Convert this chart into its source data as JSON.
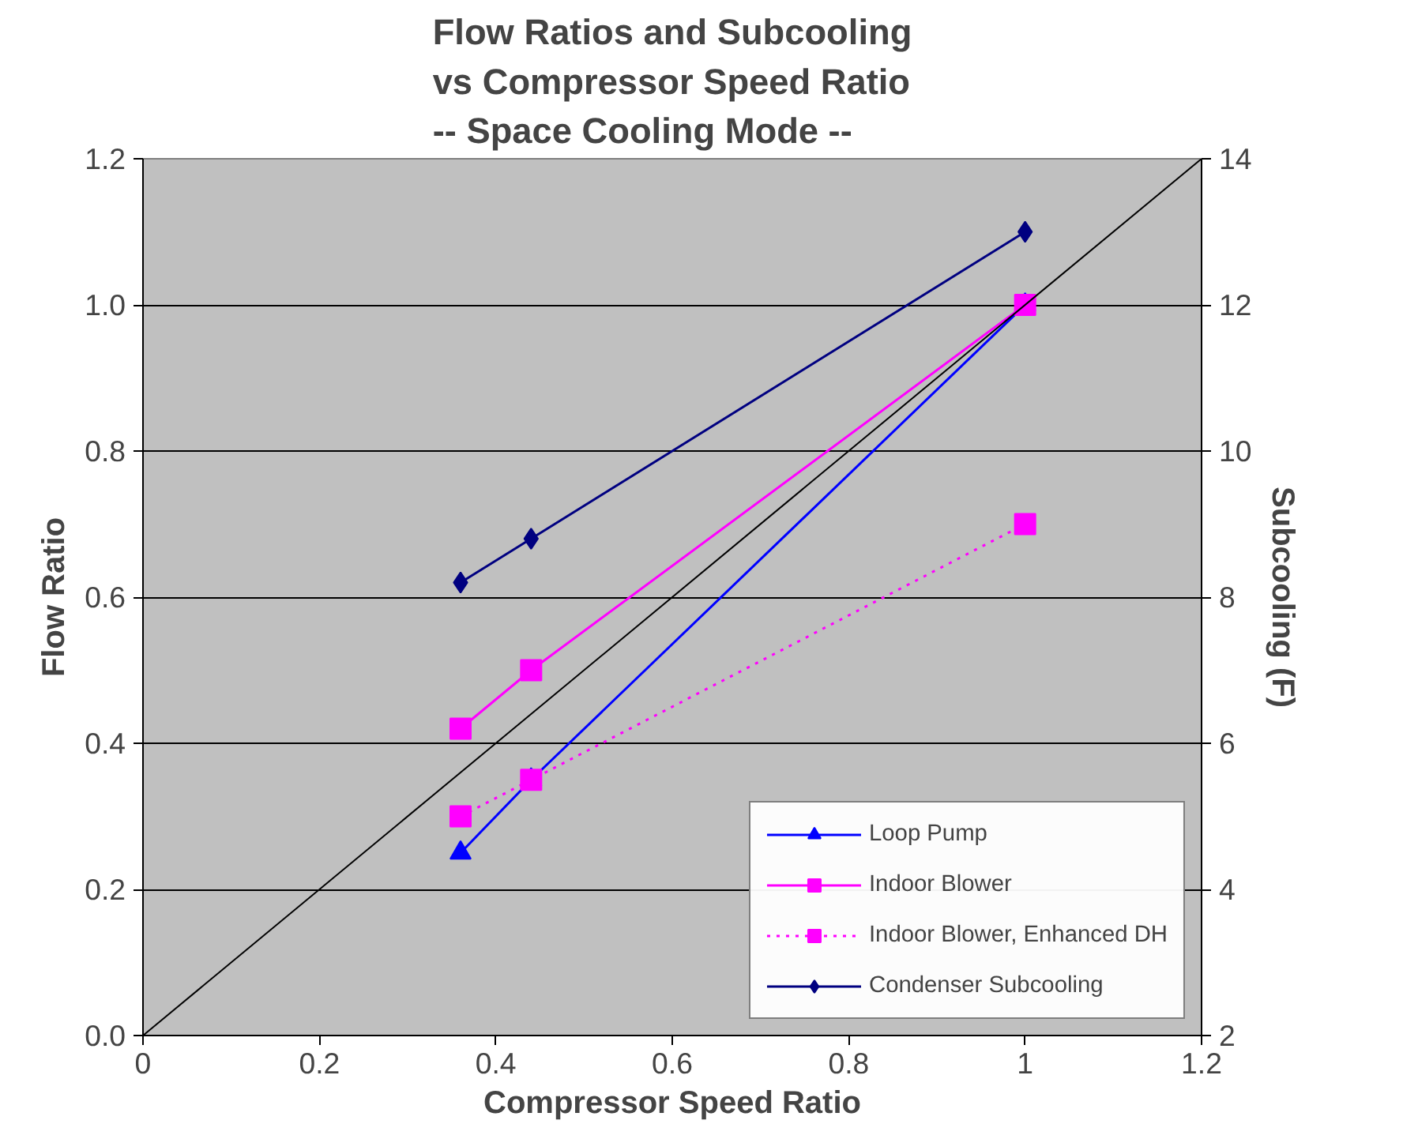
{
  "chart_data": {
    "type": "line",
    "title": "Flow Ratios and Subcooling\nvs Compressor Speed Ratio\n-- Space Cooling Mode --",
    "xlabel": "Compressor Speed Ratio",
    "ylabel": "Flow Ratio",
    "y2label": "Subcooling (F)",
    "x": [
      0.36,
      0.44,
      1.0
    ],
    "series": [
      {
        "name": "Loop Pump",
        "color": "#0000ff",
        "values": [
          0.25,
          0.35,
          1.0
        ],
        "marker": "triangle",
        "line_style": "solid"
      },
      {
        "name": "Indoor Blower",
        "color": "#ff00ff",
        "values": [
          0.42,
          0.5,
          1.0
        ],
        "marker": "square",
        "line_style": "solid"
      },
      {
        "name": "Indoor Blower, Enhanced DH",
        "color": "#ff00ff",
        "values": [
          0.3,
          0.35,
          0.7
        ],
        "marker": "square",
        "line_style": "dotted"
      },
      {
        "name": "Condenser Subcooling",
        "color": "#000080",
        "values": [
          8.2,
          8.8,
          13.0
        ],
        "marker": "diamond",
        "line_style": "solid",
        "axis": "y2"
      },
      {
        "color": "#000000",
        "x": [
          0,
          1.2
        ],
        "values": [
          0,
          1.2
        ],
        "marker": "none",
        "line_style": "solid"
      }
    ],
    "xlim": [
      0,
      1.2
    ],
    "xticks": [
      0,
      0.2,
      0.4,
      0.6,
      0.8,
      1,
      1.2
    ],
    "ylim": [
      0,
      1.2
    ],
    "yticks": [
      {
        "value": 0,
        "label": "0.0"
      },
      {
        "value": 0.2,
        "label": "0.2"
      },
      {
        "value": 0.4,
        "label": "0.4"
      },
      {
        "value": 0.6,
        "label": "0.6"
      },
      {
        "value": 0.8,
        "label": "0.8"
      },
      {
        "value": 1,
        "label": "1.0"
      },
      {
        "value": 1.2,
        "label": "1.2"
      }
    ],
    "y2lim": [
      2,
      14
    ],
    "y2ticks": [
      2,
      4,
      6,
      8,
      10,
      12,
      14
    ],
    "grid": "y",
    "legend": "bottom right"
  }
}
